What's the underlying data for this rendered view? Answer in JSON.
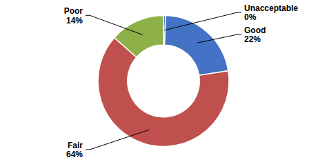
{
  "chart_data": {
    "type": "pie",
    "categories": [
      "Unacceptable",
      "Good",
      "Fair",
      "Poor"
    ],
    "values": [
      0.5,
      22,
      64,
      13.5
    ],
    "value_labels": [
      "0%",
      "22%",
      "64%",
      "14%"
    ],
    "colors": [
      "#4472C4",
      "#4472C4",
      "#C0504D",
      "#8DB048"
    ],
    "data_labels": true
  }
}
